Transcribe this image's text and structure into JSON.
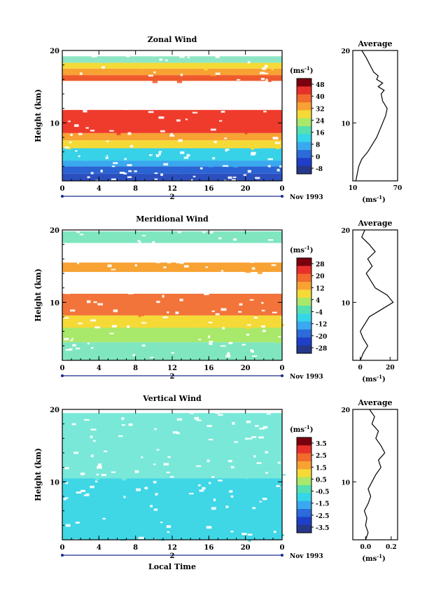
{
  "chart_data": [
    {
      "type": "heatmap",
      "title": "Zonal Wind",
      "ylabel": "Height (km)",
      "y_ticks": [
        "20",
        "10"
      ],
      "x_ticks": [
        "0",
        "4",
        "8",
        "12",
        "16",
        "20",
        "0"
      ],
      "day_label": "2",
      "date_label": "Nov 1993",
      "xlim": [
        0,
        24
      ],
      "ylim": [
        2,
        20
      ],
      "colorbar": {
        "unit": "(ms",
        "unit_exp": "-1",
        "unit_close": ")",
        "tick_labels": [
          "48",
          "40",
          "32",
          "24",
          "16",
          "8",
          "0",
          "-8"
        ],
        "colors": [
          "#7a0010",
          "#e8302a",
          "#f26a2c",
          "#f7a233",
          "#f5da37",
          "#a8e86a",
          "#56e0b0",
          "#34d6e8",
          "#3aa8ef",
          "#2c6bd9",
          "#1f3fc9",
          "#263888"
        ]
      },
      "layers": [
        {
          "band": [
            2.0,
            3.0
          ],
          "color": "#2c4fbf"
        },
        {
          "band": [
            3.0,
            4.0
          ],
          "color": "#2a63d3"
        },
        {
          "band": [
            4.0,
            4.8
          ],
          "color": "#3aa8ef"
        },
        {
          "band": [
            4.8,
            6.5
          ],
          "color": "#37d1e8"
        },
        {
          "band": [
            6.5,
            7.6
          ],
          "color": "#f5da37"
        },
        {
          "band": [
            7.6,
            8.6
          ],
          "color": "#f7a233"
        },
        {
          "band": [
            8.6,
            11.8
          ],
          "color": "#ef3b2c"
        },
        {
          "band": [
            11.8,
            15.8
          ],
          "color": "#ffffff"
        },
        {
          "band": [
            15.8,
            16.6
          ],
          "color": "#ef5a2c"
        },
        {
          "band": [
            16.6,
            17.5
          ],
          "color": "#f7a233"
        },
        {
          "band": [
            17.5,
            18.3
          ],
          "color": "#f5da37"
        },
        {
          "band": [
            18.3,
            19.2
          ],
          "color": "#8fe6c4"
        }
      ],
      "profile": {
        "title": "Average",
        "xlim": [
          10,
          70
        ],
        "x_ticks": [
          "10",
          "70"
        ],
        "x_unit": "(ms",
        "x_unit_exp": "-1",
        "x_unit_close": ")",
        "y_ticks": [
          "20",
          "10"
        ],
        "points": [
          [
            14,
            2
          ],
          [
            16,
            3
          ],
          [
            18,
            4
          ],
          [
            22,
            5
          ],
          [
            30,
            6
          ],
          [
            36,
            7
          ],
          [
            42,
            8
          ],
          [
            46,
            9
          ],
          [
            50,
            10
          ],
          [
            54,
            11
          ],
          [
            56,
            12
          ],
          [
            50,
            13
          ],
          [
            48,
            14
          ],
          [
            52,
            14.5
          ],
          [
            44,
            15
          ],
          [
            50,
            15.5
          ],
          [
            42,
            16
          ],
          [
            44,
            16.5
          ],
          [
            38,
            17
          ],
          [
            33,
            18
          ],
          [
            28,
            19
          ],
          [
            22,
            20
          ]
        ]
      }
    },
    {
      "type": "heatmap",
      "title": "Meridional Wind",
      "ylabel": "Height (km)",
      "y_ticks": [
        "20",
        "10"
      ],
      "x_ticks": [
        "0",
        "4",
        "8",
        "12",
        "16",
        "20",
        "0"
      ],
      "day_label": "2",
      "date_label": "Nov 1993",
      "xlim": [
        0,
        24
      ],
      "ylim": [
        2,
        20
      ],
      "colorbar": {
        "unit": "(ms",
        "unit_exp": "-1",
        "unit_close": ")",
        "tick_labels": [
          "28",
          "20",
          "12",
          "4",
          "-4",
          "-12",
          "-20",
          "-28"
        ],
        "colors": [
          "#7a0010",
          "#e8302a",
          "#f26a2c",
          "#f7a233",
          "#f5da37",
          "#a8e86a",
          "#56e0b0",
          "#34d6e8",
          "#3aa8ef",
          "#2c6bd9",
          "#1f3fc9",
          "#263888"
        ]
      },
      "layers": [
        {
          "band": [
            2.0,
            4.5
          ],
          "color": "#7fe6c0"
        },
        {
          "band": [
            4.5,
            6.5
          ],
          "color": "#a8e86a"
        },
        {
          "band": [
            6.5,
            8.2
          ],
          "color": "#f5da37"
        },
        {
          "band": [
            8.2,
            11.2
          ],
          "color": "#f2743a"
        },
        {
          "band": [
            11.2,
            14.2
          ],
          "color": "#ffffff"
        },
        {
          "band": [
            14.2,
            15.5
          ],
          "color": "#f7a233"
        },
        {
          "band": [
            15.5,
            18.2
          ],
          "color": "#ffffff"
        },
        {
          "band": [
            18.2,
            19.8
          ],
          "color": "#7fe6c0"
        }
      ],
      "profile": {
        "title": "Average",
        "xlim": [
          -5,
          25
        ],
        "x_ticks": [
          "0",
          "20"
        ],
        "x_unit": "(ms",
        "x_unit_exp": "-1",
        "x_unit_close": ")",
        "y_ticks": [
          "20",
          "10"
        ],
        "points": [
          [
            0,
            2
          ],
          [
            2,
            3
          ],
          [
            5,
            4
          ],
          [
            2,
            5
          ],
          [
            0,
            6
          ],
          [
            3,
            7
          ],
          [
            6,
            8
          ],
          [
            14,
            9
          ],
          [
            22,
            10
          ],
          [
            18,
            11
          ],
          [
            10,
            12
          ],
          [
            7,
            13
          ],
          [
            4,
            14
          ],
          [
            8,
            15
          ],
          [
            5,
            16
          ],
          [
            10,
            17
          ],
          [
            6,
            18
          ],
          [
            1,
            19
          ],
          [
            3,
            20
          ]
        ]
      }
    },
    {
      "type": "heatmap",
      "title": "Vertical Wind",
      "ylabel": "Height (km)",
      "y_ticks": [
        "20",
        "10"
      ],
      "x_ticks": [
        "0",
        "4",
        "8",
        "12",
        "16",
        "20",
        "0"
      ],
      "day_label": "2",
      "date_label": "Nov 1993",
      "xlabel": "Local Time",
      "xlim": [
        0,
        24
      ],
      "ylim": [
        2,
        20
      ],
      "colorbar": {
        "unit": "(ms",
        "unit_exp": "-1",
        "unit_close": ")",
        "tick_labels": [
          "3.5",
          "2.5",
          "1.5",
          "0.5",
          "-0.5",
          "-1.5",
          "-2.5",
          "-3.5"
        ],
        "colors": [
          "#7a0010",
          "#e8302a",
          "#f26a2c",
          "#f7a233",
          "#f5da37",
          "#a8e86a",
          "#56e0b0",
          "#34d6e8",
          "#3aa8ef",
          "#2c6bd9",
          "#1f3fc9",
          "#263888"
        ]
      },
      "layers": [
        {
          "band": [
            2.0,
            10.5
          ],
          "color": "#3fd6e6"
        },
        {
          "band": [
            10.5,
            19.5
          ],
          "color": "#79e8d8"
        }
      ],
      "profile": {
        "title": "Average",
        "xlim": [
          -0.1,
          0.25
        ],
        "x_ticks": [
          "0.0",
          "0.2"
        ],
        "x_unit": "(ms",
        "x_unit_exp": "-1",
        "x_unit_close": ")",
        "y_ticks": [
          "20",
          "10"
        ],
        "points": [
          [
            0.0,
            2
          ],
          [
            0.02,
            3
          ],
          [
            0.0,
            4
          ],
          [
            0.01,
            5
          ],
          [
            -0.01,
            6
          ],
          [
            0.02,
            7
          ],
          [
            0.04,
            8
          ],
          [
            0.02,
            9
          ],
          [
            0.05,
            10
          ],
          [
            0.08,
            11
          ],
          [
            0.12,
            12
          ],
          [
            0.1,
            13
          ],
          [
            0.15,
            14
          ],
          [
            0.12,
            15
          ],
          [
            0.08,
            16
          ],
          [
            0.1,
            17
          ],
          [
            0.05,
            18
          ],
          [
            0.07,
            19
          ],
          [
            0.03,
            20
          ]
        ]
      }
    }
  ]
}
